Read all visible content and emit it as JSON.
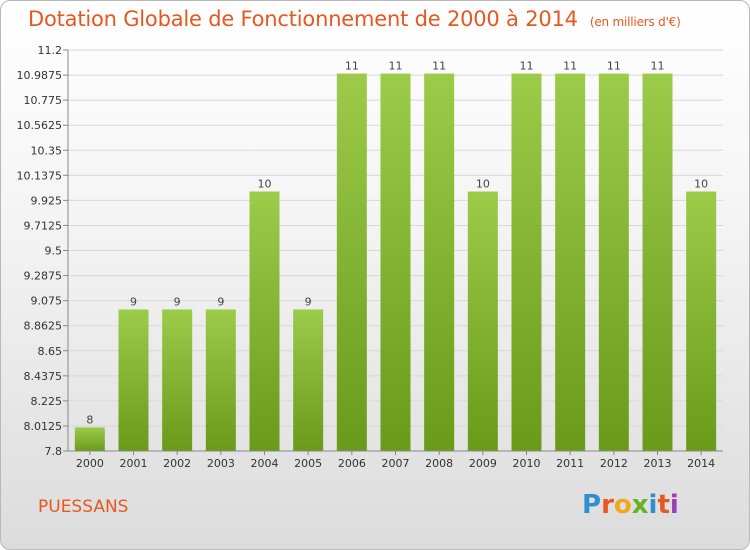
{
  "chart_data": {
    "type": "bar",
    "title": "Dotation Globale de Fonctionnement de 2000 à 2014",
    "subtitle": "(en milliers d'€)",
    "categories": [
      "2000",
      "2001",
      "2002",
      "2003",
      "2004",
      "2005",
      "2006",
      "2007",
      "2008",
      "2009",
      "2010",
      "2011",
      "2012",
      "2013",
      "2014"
    ],
    "values": [
      8,
      9,
      9,
      9,
      10,
      9,
      11,
      11,
      11,
      10,
      11,
      11,
      11,
      11,
      10
    ],
    "value_labels": [
      "8",
      "9",
      "9",
      "9",
      "10",
      "9",
      "11",
      "11",
      "11",
      "10",
      "11",
      "11",
      "11",
      "11",
      "10"
    ],
    "ylim": [
      7.8,
      11.2
    ],
    "y_ticks": [
      "7.8",
      "8.0125",
      "8.225",
      "8.4375",
      "8.65",
      "8.8625",
      "9.075",
      "9.2875",
      "9.5",
      "9.7125",
      "9.925",
      "10.1375",
      "10.35",
      "10.5625",
      "10.775",
      "10.9875",
      "11.2"
    ],
    "grid": true,
    "bar_color_top": "#9ccb4a",
    "bar_color_bottom": "#6a9a1a"
  },
  "footer": {
    "commune": "PUESSANS",
    "logo_text": "Proxiti"
  },
  "colors": {
    "accent": "#e8571f"
  }
}
